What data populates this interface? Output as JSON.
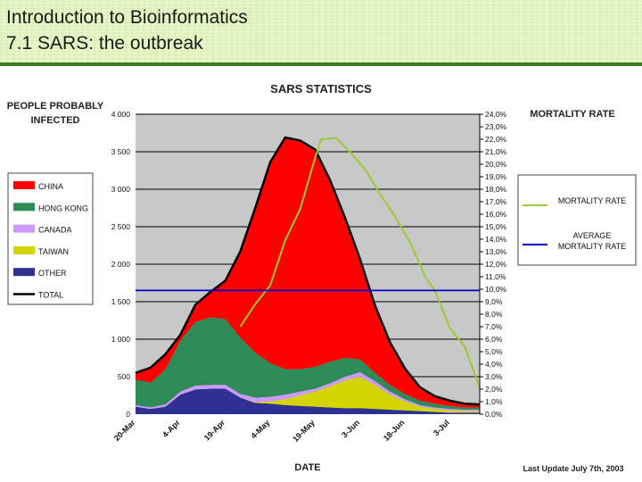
{
  "slide": {
    "title_line1": "Introduction to Bioinformatics",
    "title_line2": "7.1 SARS: the outbreak",
    "accent_color": "#3f7b1f"
  },
  "chart_data": {
    "type": "area",
    "title": "SARS STATISTICS",
    "ylabel": "PEOPLE PROBABLY INFECTED",
    "y2label": "MORTALITY RATE",
    "xlabel": "DATE",
    "footnote": "Last Update July 7th, 2003",
    "ylim": [
      0,
      4000
    ],
    "y2lim": [
      0,
      24
    ],
    "y_ticks": [
      0,
      500,
      1000,
      1500,
      2000,
      2500,
      3000,
      3500,
      4000
    ],
    "y_tick_labels": [
      "0",
      "500",
      "1 000",
      "1 500",
      "2 000",
      "2 500",
      "3 000",
      "3 500",
      "4 000"
    ],
    "y2_tick_labels": [
      "0,0%",
      "1,0%",
      "2,0%",
      "3,0%",
      "4,0%",
      "5,0%",
      "6,0%",
      "7,0%",
      "8,0%",
      "9,0%",
      "10,0%",
      "11,0%",
      "12,0%",
      "13,0%",
      "14,0%",
      "15,0%",
      "16,0%",
      "17,0%",
      "18,0%",
      "19,0%",
      "20,0%",
      "21,0%",
      "22,0%",
      "23,0%",
      "24,0%"
    ],
    "x_ticks": [
      {
        "day": 0,
        "label": "20-Mar"
      },
      {
        "day": 15,
        "label": "4-Apr"
      },
      {
        "day": 30,
        "label": "19-Apr"
      },
      {
        "day": 45,
        "label": "4-May"
      },
      {
        "day": 60,
        "label": "19-May"
      },
      {
        "day": 75,
        "label": "3-Jun"
      },
      {
        "day": 90,
        "label": "18-Jun"
      },
      {
        "day": 105,
        "label": "3-Jul"
      }
    ],
    "x_range": [
      0,
      115
    ],
    "x": [
      0,
      5,
      10,
      15,
      20,
      25,
      30,
      35,
      40,
      45,
      50,
      55,
      60,
      65,
      70,
      75,
      80,
      85,
      90,
      95,
      100,
      105,
      110,
      115
    ],
    "series": [
      {
        "name": "OTHER",
        "color": "#2e3192",
        "values": [
          100,
          70,
          100,
          260,
          330,
          340,
          340,
          220,
          150,
          140,
          120,
          110,
          100,
          90,
          80,
          80,
          70,
          60,
          50,
          40,
          30,
          20,
          20,
          20
        ]
      },
      {
        "name": "TAIWAN",
        "color": "#d4d400",
        "values": [
          0,
          0,
          0,
          0,
          0,
          0,
          0,
          0,
          10,
          30,
          80,
          140,
          200,
          280,
          370,
          420,
          320,
          200,
          120,
          60,
          40,
          30,
          20,
          20
        ]
      },
      {
        "name": "CANADA",
        "color": "#cc99ff",
        "values": [
          20,
          20,
          30,
          40,
          50,
          50,
          50,
          50,
          60,
          60,
          60,
          50,
          40,
          40,
          50,
          60,
          50,
          40,
          30,
          20,
          20,
          20,
          20,
          20
        ]
      },
      {
        "name": "HONG KONG",
        "color": "#2e8b57",
        "values": [
          340,
          330,
          470,
          680,
          850,
          900,
          880,
          750,
          600,
          450,
          340,
          300,
          290,
          290,
          250,
          170,
          110,
          90,
          70,
          60,
          50,
          40,
          30,
          30
        ]
      },
      {
        "name": "CHINA",
        "color": "#ff0000",
        "values": [
          90,
          200,
          200,
          80,
          230,
          340,
          510,
          1150,
          1930,
          2680,
          3090,
          3050,
          2900,
          2420,
          1870,
          1340,
          900,
          570,
          340,
          180,
          100,
          70,
          50,
          40
        ]
      }
    ],
    "total_line": {
      "name": "TOTAL",
      "color": "#000000"
    },
    "mortality_rate": {
      "name": "MORTALITY RATE",
      "color": "#99cc33",
      "x": [
        35,
        40,
        45,
        50,
        55,
        60,
        62,
        67,
        72,
        77,
        82,
        87,
        92,
        97,
        100,
        105,
        110,
        115
      ],
      "values": [
        7.0,
        8.8,
        10.3,
        13.9,
        16.4,
        20.5,
        22.0,
        22.1,
        20.9,
        19.5,
        17.5,
        15.7,
        13.6,
        10.9,
        9.9,
        6.9,
        5.4,
        2.1
      ]
    },
    "average_mortality_rate": {
      "name": "AVERAGE MORTALITY RATE",
      "color": "#0000cc",
      "value": 9.9
    },
    "legend_area": [
      "CHINA",
      "HONG KONG",
      "CANADA",
      "TAIWAN",
      "OTHER",
      "TOTAL"
    ],
    "legend_line": [
      "MORTALITY RATE",
      "AVERAGE MORTALITY RATE"
    ]
  }
}
